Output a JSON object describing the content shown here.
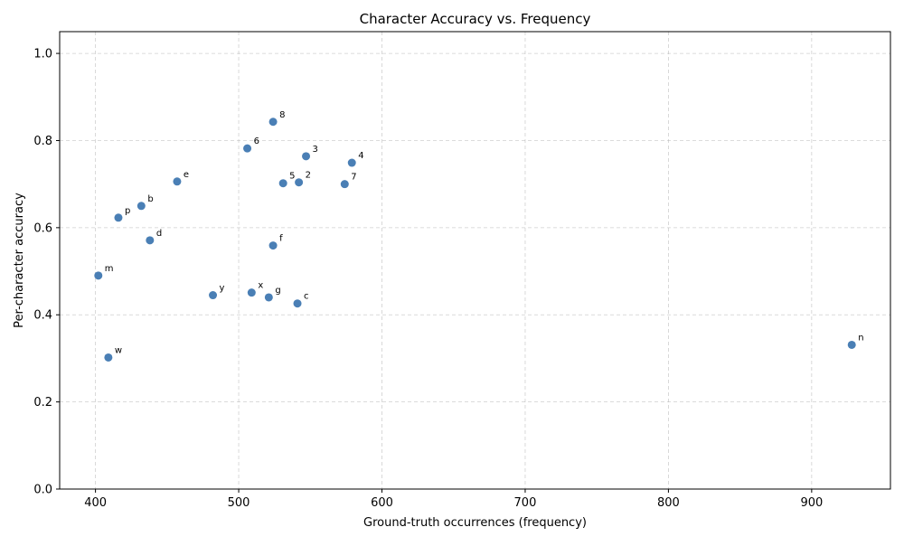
{
  "chart_data": {
    "type": "scatter",
    "title": "Character Accuracy vs. Frequency",
    "xlabel": "Ground-truth occurrences (frequency)",
    "ylabel": "Per-character accuracy",
    "xlim": [
      375,
      955
    ],
    "ylim": [
      0.0,
      1.05
    ],
    "xticks": [
      400,
      500,
      600,
      700,
      800,
      900
    ],
    "yticks": [
      0.0,
      0.2,
      0.4,
      0.6,
      0.8,
      1.0
    ],
    "xtick_labels": [
      "400",
      "500",
      "600",
      "700",
      "800",
      "900"
    ],
    "ytick_labels": [
      "0.0",
      "0.2",
      "0.4",
      "0.6",
      "0.8",
      "1.0"
    ],
    "grid": true,
    "marker_color": "#4a7fb5",
    "points": [
      {
        "label": "8",
        "x": 524,
        "y": 0.843
      },
      {
        "label": "6",
        "x": 506,
        "y": 0.782
      },
      {
        "label": "3",
        "x": 547,
        "y": 0.764
      },
      {
        "label": "4",
        "x": 579,
        "y": 0.749
      },
      {
        "label": "e",
        "x": 457,
        "y": 0.706
      },
      {
        "label": "5",
        "x": 531,
        "y": 0.702
      },
      {
        "label": "2",
        "x": 542,
        "y": 0.704
      },
      {
        "label": "7",
        "x": 574,
        "y": 0.7
      },
      {
        "label": "b",
        "x": 432,
        "y": 0.65
      },
      {
        "label": "p",
        "x": 416,
        "y": 0.623
      },
      {
        "label": "d",
        "x": 438,
        "y": 0.571
      },
      {
        "label": "f",
        "x": 524,
        "y": 0.559
      },
      {
        "label": "m",
        "x": 402,
        "y": 0.49
      },
      {
        "label": "y",
        "x": 482,
        "y": 0.445
      },
      {
        "label": "x",
        "x": 509,
        "y": 0.451
      },
      {
        "label": "g",
        "x": 521,
        "y": 0.44
      },
      {
        "label": "c",
        "x": 541,
        "y": 0.426
      },
      {
        "label": "n",
        "x": 928,
        "y": 0.331
      },
      {
        "label": "w",
        "x": 409,
        "y": 0.302
      }
    ]
  }
}
